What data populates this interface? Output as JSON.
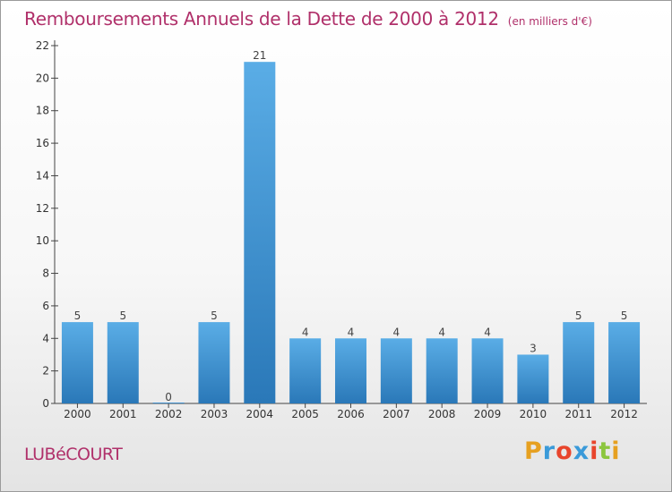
{
  "title": {
    "main": "Remboursements Annuels de la Dette de 2000 à 2012",
    "unit": "(en milliers d'€)"
  },
  "commune": "LUBéCOURT",
  "brand": {
    "text": "Proxiti",
    "letter_colors": [
      "#e6a020",
      "#3a9ad9",
      "#e8452c",
      "#3a9ad9",
      "#e8452c",
      "#8cc63f",
      "#e6a020"
    ]
  },
  "colors": {
    "title": "#b0306a",
    "bar_light": "#5aade6",
    "bar_dark": "#2a78b8"
  },
  "chart_data": {
    "type": "bar",
    "categories": [
      "2000",
      "2001",
      "2002",
      "2003",
      "2004",
      "2005",
      "2006",
      "2007",
      "2008",
      "2009",
      "2010",
      "2011",
      "2012"
    ],
    "values": [
      5,
      5,
      0,
      5,
      21,
      4,
      4,
      4,
      4,
      4,
      3,
      5,
      5
    ],
    "yticks": [
      0,
      2,
      4,
      6,
      8,
      10,
      12,
      14,
      16,
      18,
      20,
      22
    ],
    "ylim": [
      0,
      22
    ],
    "grid": false,
    "data_labels": true
  }
}
